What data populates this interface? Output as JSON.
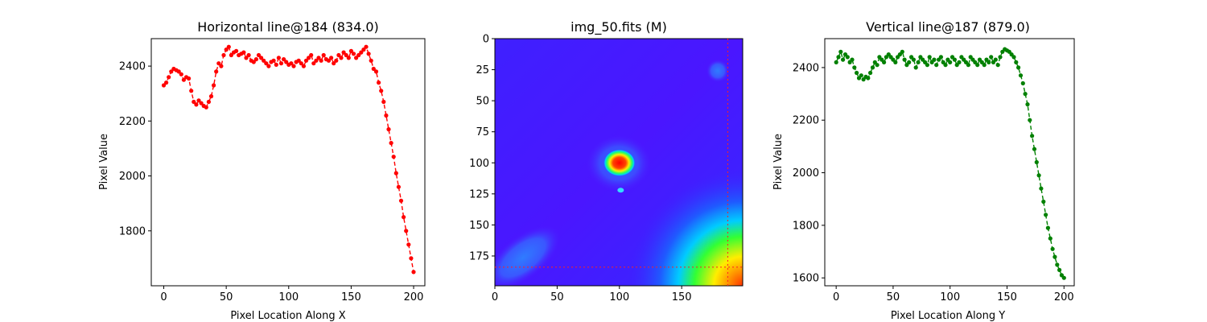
{
  "chart_data": [
    {
      "type": "line",
      "title": "Horizontal line@184 (834.0)",
      "xlabel": "Pixel Location Along X",
      "ylabel": "Pixel Value",
      "xlim": [
        -10,
        209
      ],
      "ylim": [
        1600,
        2500
      ],
      "xticks": [
        0,
        50,
        100,
        150,
        200
      ],
      "yticks": [
        1800,
        2000,
        2200,
        2400
      ],
      "color": "#ff0000",
      "linestyle": "dashed",
      "marker": "dot",
      "x": [
        0,
        2,
        4,
        6,
        8,
        10,
        12,
        14,
        16,
        18,
        20,
        22,
        24,
        26,
        28,
        30,
        32,
        34,
        36,
        38,
        40,
        42,
        44,
        46,
        48,
        50,
        52,
        54,
        56,
        58,
        60,
        62,
        64,
        66,
        68,
        70,
        72,
        74,
        76,
        78,
        80,
        82,
        84,
        86,
        88,
        90,
        92,
        94,
        96,
        98,
        100,
        102,
        104,
        106,
        108,
        110,
        112,
        114,
        116,
        118,
        120,
        122,
        124,
        126,
        128,
        130,
        132,
        134,
        136,
        138,
        140,
        142,
        144,
        146,
        148,
        150,
        152,
        154,
        156,
        158,
        160,
        162,
        164,
        166,
        168,
        170,
        172,
        174,
        176,
        178,
        180,
        182,
        184,
        186,
        188,
        190,
        192,
        194,
        196,
        198,
        200
      ],
      "y": [
        2330,
        2340,
        2360,
        2380,
        2390,
        2385,
        2380,
        2370,
        2350,
        2360,
        2355,
        2310,
        2270,
        2260,
        2275,
        2265,
        2255,
        2250,
        2270,
        2290,
        2330,
        2380,
        2410,
        2400,
        2440,
        2460,
        2470,
        2440,
        2450,
        2455,
        2440,
        2445,
        2450,
        2430,
        2440,
        2420,
        2415,
        2425,
        2440,
        2430,
        2420,
        2410,
        2400,
        2415,
        2420,
        2405,
        2430,
        2410,
        2425,
        2415,
        2405,
        2410,
        2400,
        2415,
        2420,
        2410,
        2400,
        2420,
        2430,
        2440,
        2410,
        2420,
        2430,
        2420,
        2440,
        2425,
        2420,
        2430,
        2410,
        2420,
        2440,
        2430,
        2450,
        2440,
        2430,
        2455,
        2445,
        2430,
        2440,
        2450,
        2460,
        2470,
        2445,
        2420,
        2390,
        2380,
        2340,
        2310,
        2270,
        2220,
        2170,
        2120,
        2070,
        2010,
        1960,
        1910,
        1850,
        1800,
        1750,
        1700,
        1650
      ]
    },
    {
      "type": "heatmap",
      "title": "img_50.fits (M)",
      "xlim": [
        0,
        199
      ],
      "ylim": [
        199,
        0
      ],
      "xticks": [
        0,
        50,
        100,
        150
      ],
      "yticks": [
        0,
        25,
        50,
        75,
        100,
        125,
        150,
        175
      ],
      "colormap": "gist_rainbow",
      "bright_spot": {
        "x": 100,
        "y": 100
      },
      "small_spot": {
        "x": 101,
        "y": 122
      },
      "hline_y": 184,
      "vline_x": 187
    },
    {
      "type": "line",
      "title": "Vertical line@187 (879.0)",
      "xlabel": "Pixel Location Along Y",
      "ylabel": "Pixel Value",
      "xlim": [
        -10,
        209
      ],
      "ylim": [
        1570,
        2510
      ],
      "xticks": [
        0,
        50,
        100,
        150,
        200
      ],
      "yticks": [
        1600,
        1800,
        2000,
        2200,
        2400
      ],
      "color": "#008000",
      "linestyle": "dashed",
      "marker": "dot",
      "x": [
        0,
        2,
        4,
        6,
        8,
        10,
        12,
        14,
        16,
        18,
        20,
        22,
        24,
        26,
        28,
        30,
        32,
        34,
        36,
        38,
        40,
        42,
        44,
        46,
        48,
        50,
        52,
        54,
        56,
        58,
        60,
        62,
        64,
        66,
        68,
        70,
        72,
        74,
        76,
        78,
        80,
        82,
        84,
        86,
        88,
        90,
        92,
        94,
        96,
        98,
        100,
        102,
        104,
        106,
        108,
        110,
        112,
        114,
        116,
        118,
        120,
        122,
        124,
        126,
        128,
        130,
        132,
        134,
        136,
        138,
        140,
        142,
        144,
        146,
        148,
        150,
        152,
        154,
        156,
        158,
        160,
        162,
        164,
        166,
        168,
        170,
        172,
        174,
        176,
        178,
        180,
        182,
        184,
        186,
        188,
        190,
        192,
        194,
        196,
        198,
        200
      ],
      "y": [
        2420,
        2440,
        2460,
        2430,
        2450,
        2440,
        2420,
        2430,
        2400,
        2380,
        2360,
        2370,
        2355,
        2365,
        2360,
        2380,
        2400,
        2420,
        2410,
        2440,
        2430,
        2420,
        2440,
        2450,
        2440,
        2430,
        2420,
        2440,
        2450,
        2460,
        2430,
        2410,
        2420,
        2440,
        2430,
        2400,
        2420,
        2440,
        2430,
        2420,
        2410,
        2440,
        2420,
        2430,
        2410,
        2430,
        2440,
        2420,
        2410,
        2430,
        2420,
        2440,
        2430,
        2410,
        2420,
        2440,
        2430,
        2420,
        2410,
        2440,
        2430,
        2420,
        2410,
        2430,
        2420,
        2410,
        2430,
        2420,
        2440,
        2420,
        2430,
        2410,
        2440,
        2460,
        2470,
        2465,
        2460,
        2450,
        2440,
        2420,
        2400,
        2370,
        2340,
        2300,
        2260,
        2200,
        2140,
        2090,
        2040,
        1990,
        1940,
        1890,
        1840,
        1790,
        1750,
        1710,
        1680,
        1650,
        1630,
        1610,
        1600
      ]
    }
  ]
}
